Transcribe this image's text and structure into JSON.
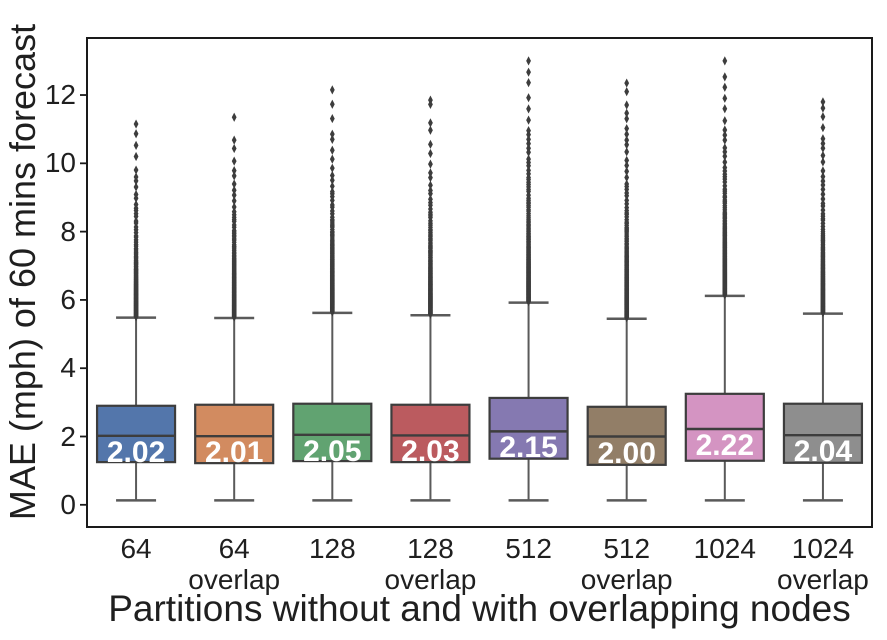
{
  "chart_data": {
    "type": "boxplot",
    "title": "",
    "xlabel": "Partitions without and with overlapping nodes",
    "ylabel": "MAE (mph) of 60 mins forecast",
    "y_ticks": [
      0,
      2,
      4,
      6,
      8,
      10,
      12
    ],
    "ylim": [
      -0.65,
      13.67
    ],
    "grid": false,
    "legend": null,
    "flier_marker": "thin-diamond",
    "series": [
      {
        "label_line1": "64",
        "label_line2": "",
        "color": "#5376AB",
        "median_label": "2.02",
        "median": 2.02,
        "q1": 1.25,
        "q3": 2.9,
        "whisker_low": 0.13,
        "whisker_high": 5.48,
        "outlier_max": 11.15
      },
      {
        "label_line1": "64",
        "label_line2": "overlap",
        "color": "#D28B60",
        "median_label": "2.01",
        "median": 2.01,
        "q1": 1.22,
        "q3": 2.93,
        "whisker_low": 0.13,
        "whisker_high": 5.47,
        "outlier_max": 11.35
      },
      {
        "label_line1": "128",
        "label_line2": "",
        "color": "#61A371",
        "median_label": "2.05",
        "median": 2.05,
        "q1": 1.28,
        "q3": 2.96,
        "whisker_low": 0.13,
        "whisker_high": 5.62,
        "outlier_max": 12.15
      },
      {
        "label_line1": "128",
        "label_line2": "overlap",
        "color": "#BB5B5F",
        "median_label": "2.03",
        "median": 2.03,
        "q1": 1.25,
        "q3": 2.93,
        "whisker_low": 0.13,
        "whisker_high": 5.55,
        "outlier_max": 11.85
      },
      {
        "label_line1": "512",
        "label_line2": "",
        "color": "#8579B1",
        "median_label": "2.15",
        "median": 2.15,
        "q1": 1.35,
        "q3": 3.13,
        "whisker_low": 0.13,
        "whisker_high": 5.92,
        "outlier_max": 13.0
      },
      {
        "label_line1": "512",
        "label_line2": "overlap",
        "color": "#927E67",
        "median_label": "2.00",
        "median": 2.0,
        "q1": 1.17,
        "q3": 2.87,
        "whisker_low": 0.13,
        "whisker_high": 5.45,
        "outlier_max": 12.35
      },
      {
        "label_line1": "1024",
        "label_line2": "",
        "color": "#D494C2",
        "median_label": "2.22",
        "median": 2.22,
        "q1": 1.29,
        "q3": 3.25,
        "whisker_low": 0.13,
        "whisker_high": 6.12,
        "outlier_max": 13.0
      },
      {
        "label_line1": "1024",
        "label_line2": "overlap",
        "color": "#8E8E8E",
        "median_label": "2.04",
        "median": 2.04,
        "q1": 1.23,
        "q3": 2.96,
        "whisker_low": 0.13,
        "whisker_high": 5.6,
        "outlier_max": 11.8
      }
    ]
  },
  "style": {
    "background": "#ffffff",
    "spine_color": "#1a1a1a",
    "box_edge_color": "#3d3d3d",
    "whisker_color": "#5a5a5a",
    "flier_color": "#3d3d3d",
    "text_color": "#1f1f1f",
    "median_label_color": "#ffffff"
  }
}
